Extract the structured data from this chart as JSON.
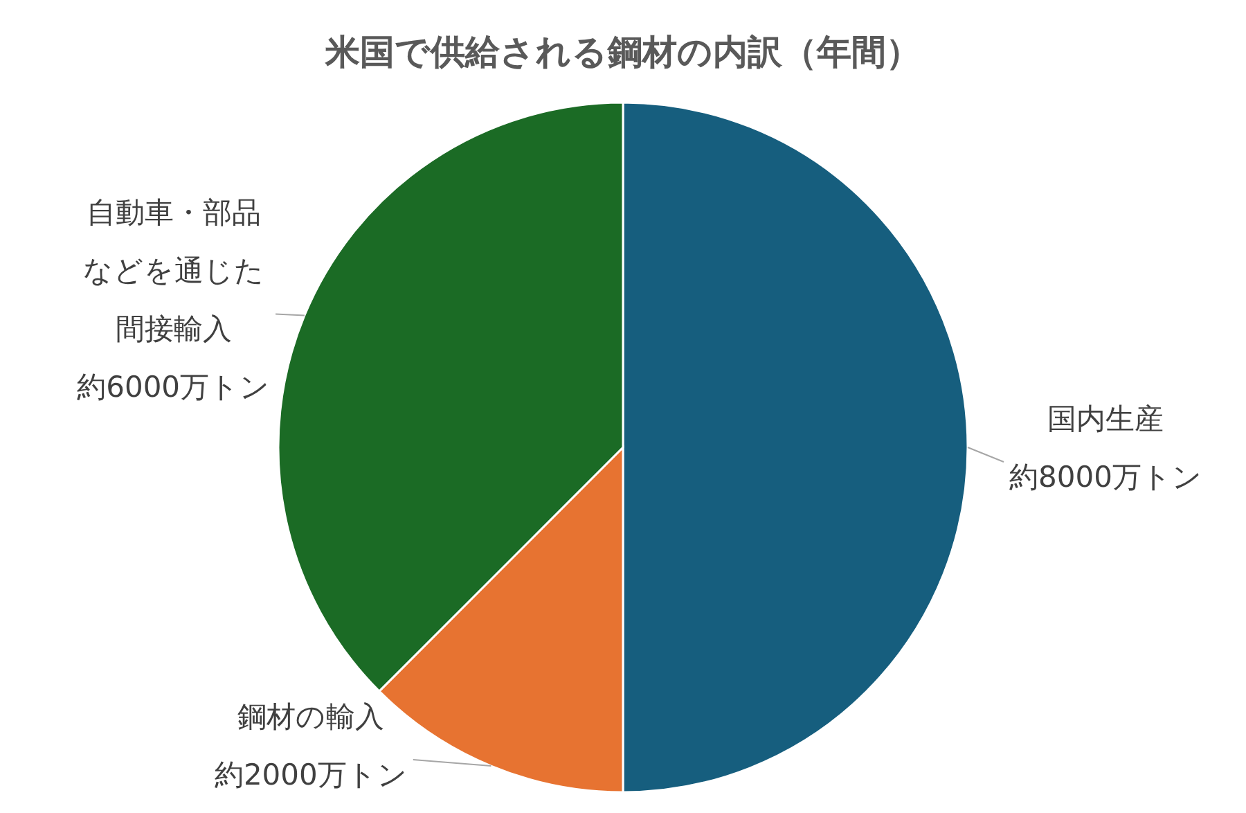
{
  "chart_data": {
    "type": "pie",
    "title": "米国で供給される鋼材の内訳（年間）",
    "categories": [
      "国内生産",
      "鋼材の輸入",
      "自動車・部品などを通じた間接輸入"
    ],
    "values": [
      8000,
      2000,
      6000
    ],
    "value_labels": [
      "約8000万トン",
      "約2000万トン",
      "約6000万トン"
    ],
    "colors": [
      "#165e7e",
      "#e77331",
      "#1b6b25"
    ]
  }
}
